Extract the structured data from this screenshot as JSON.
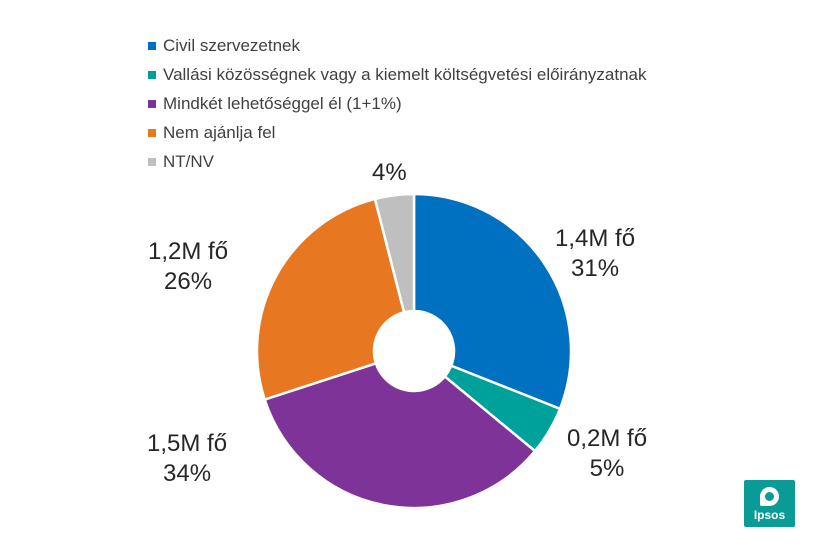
{
  "chart_data": {
    "type": "pie",
    "title": "",
    "donut": true,
    "legend_position": "top",
    "slices": [
      {
        "name": "Civil szervezetnek",
        "value": 31,
        "color": "#0070c0",
        "label_lines": [
          "1,4M fő",
          "31%"
        ]
      },
      {
        "name": "Vallási közösségnek vagy a kiemelt költségvetési előirányzatnak",
        "value": 5,
        "color": "#00a19a",
        "label_lines": [
          "0,2M fő",
          "5%"
        ]
      },
      {
        "name": "Mindkét lehetőséggel él (1+1%)",
        "value": 34,
        "color": "#7e3399",
        "label_lines": [
          "1,5M fő",
          "34%"
        ]
      },
      {
        "name": "Nem ajánlja fel",
        "value": 26,
        "color": "#e87722",
        "label_lines": [
          "1,2M fő",
          "26%"
        ]
      },
      {
        "name": "NT/NV",
        "value": 4,
        "color": "#bfbfbf",
        "label_lines": [
          "4%"
        ]
      }
    ]
  },
  "logo": {
    "text": "Ipsos"
  }
}
